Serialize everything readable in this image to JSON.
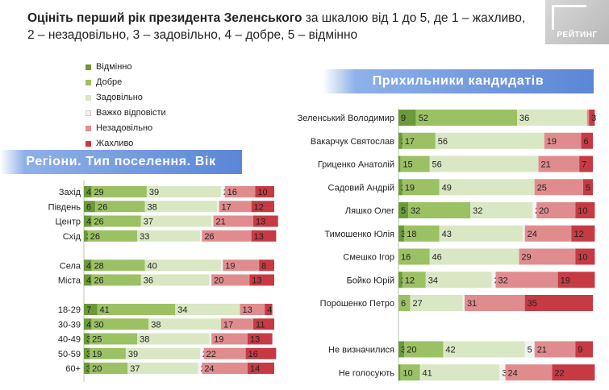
{
  "title": {
    "bold": "Оцініть перший рік президента Зеленського",
    "rest": " за шкалою від 1 до 5, де 1 – жахливо, 2 – незадовільно, 3 – задовільно, 4 – добре, 5 – відмінно"
  },
  "logo_text": "РЕЙТИНГ",
  "colors": {
    "excellent": "#6b9a3a",
    "good": "#9bc164",
    "satisfactory": "#d9e7c4",
    "hard": "#f2f2f2",
    "unsatisfactory": "#e08c8e",
    "awful": "#c63a44"
  },
  "chart_data": [
    {
      "type": "bar",
      "stacked": true,
      "orientation": "horizontal",
      "title": "Регіони. Тип поселення. Вік",
      "series": [
        {
          "name": "Відмінно",
          "color": "#6b9a3a"
        },
        {
          "name": "Добре",
          "color": "#9bc164"
        },
        {
          "name": "Задовільно",
          "color": "#d9e7c4"
        },
        {
          "name": "Важко відповісти",
          "color": "#f2f2f2"
        },
        {
          "name": "Незадовільно",
          "color": "#e08c8e"
        },
        {
          "name": "Жахливо",
          "color": "#c63a44"
        }
      ],
      "rows": [
        {
          "label": "Захід",
          "values": [
            4,
            29,
            39,
            2,
            16,
            10
          ]
        },
        {
          "label": "Південь",
          "values": [
            6,
            26,
            38,
            1,
            17,
            12
          ]
        },
        {
          "label": "Центр",
          "values": [
            4,
            26,
            37,
            1,
            21,
            13
          ]
        },
        {
          "label": "Схід",
          "values": [
            2,
            26,
            33,
            1,
            26,
            13
          ]
        },
        {
          "label": "",
          "values": []
        },
        {
          "label": "Села",
          "values": [
            4,
            28,
            40,
            1,
            19,
            8
          ]
        },
        {
          "label": "Міста",
          "values": [
            4,
            26,
            36,
            1,
            20,
            13
          ]
        },
        {
          "label": "",
          "values": []
        },
        {
          "label": "18-29",
          "values": [
            7,
            41,
            34,
            0,
            13,
            4
          ]
        },
        {
          "label": "30-39",
          "values": [
            4,
            30,
            38,
            0,
            17,
            11
          ]
        },
        {
          "label": "40-49",
          "values": [
            3,
            25,
            38,
            1,
            19,
            13
          ]
        },
        {
          "label": "50-59",
          "values": [
            3,
            19,
            39,
            2,
            22,
            16
          ]
        },
        {
          "label": "60+",
          "values": [
            3,
            20,
            37,
            2,
            24,
            14
          ]
        }
      ]
    },
    {
      "type": "bar",
      "stacked": true,
      "orientation": "horizontal",
      "title": "Прихильники кандидатів",
      "series": [
        {
          "name": "Відмінно",
          "color": "#6b9a3a"
        },
        {
          "name": "Добре",
          "color": "#9bc164"
        },
        {
          "name": "Задовільно",
          "color": "#d9e7c4"
        },
        {
          "name": "Важко відповісти",
          "color": "#f2f2f2"
        },
        {
          "name": "Незадовільно",
          "color": "#e08c8e"
        },
        {
          "name": "Жахливо",
          "color": "#c63a44"
        }
      ],
      "rows": [
        {
          "label": "Зеленський Володимир",
          "values": [
            9,
            52,
            36,
            0,
            1,
            3
          ]
        },
        {
          "label": "Вакарчук Святослав",
          "values": [
            2,
            17,
            56,
            0,
            19,
            6
          ]
        },
        {
          "label": "Гриценко Анатолій",
          "values": [
            1,
            15,
            56,
            0,
            21,
            7
          ]
        },
        {
          "label": "Садовий Андрій",
          "values": [
            2,
            19,
            49,
            0,
            25,
            5
          ]
        },
        {
          "label": "Ляшко Олег",
          "values": [
            5,
            32,
            32,
            2,
            20,
            10
          ]
        },
        {
          "label": "Тимошенко Юлія",
          "values": [
            3,
            18,
            43,
            1,
            24,
            12
          ]
        },
        {
          "label": "Смешко Ігор",
          "values": [
            0,
            16,
            46,
            0,
            29,
            10
          ]
        },
        {
          "label": "Бойко Юрій",
          "values": [
            2,
            12,
            34,
            2,
            32,
            19
          ]
        },
        {
          "label": "Порошенко Петро",
          "values": [
            0,
            6,
            27,
            1,
            31,
            35
          ]
        },
        {
          "label": "",
          "values": []
        },
        {
          "label": "Не визначилися",
          "values": [
            3,
            20,
            42,
            5,
            21,
            9
          ]
        },
        {
          "label": "Не голосують",
          "values": [
            1,
            10,
            41,
            3,
            24,
            22
          ]
        }
      ]
    }
  ]
}
